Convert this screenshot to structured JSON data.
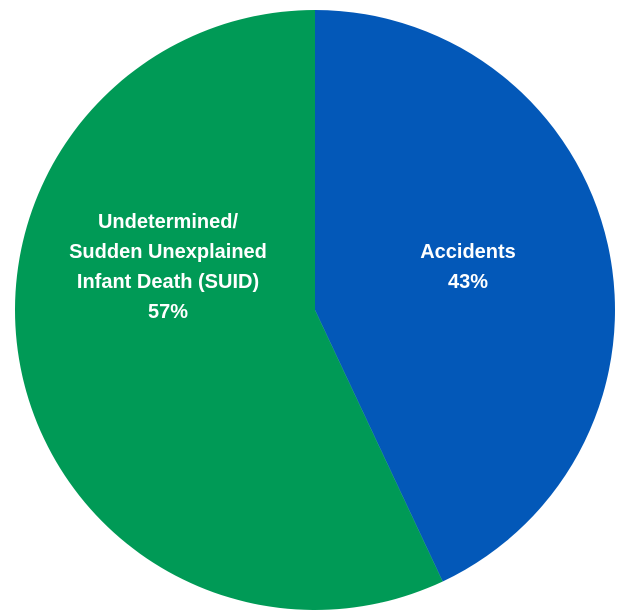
{
  "chart_data": {
    "type": "pie",
    "title": "",
    "start_angle_deg": 0,
    "direction": "clockwise",
    "slices": [
      {
        "label_lines": [
          "Accidents"
        ],
        "percent_label": "43%",
        "value": 43,
        "color": "#0358B8"
      },
      {
        "label_lines": [
          "Undetermined/",
          "Sudden Unexplained",
          "Infant Death (SUID)"
        ],
        "percent_label": "57%",
        "value": 57,
        "color": "#009A56"
      }
    ]
  }
}
